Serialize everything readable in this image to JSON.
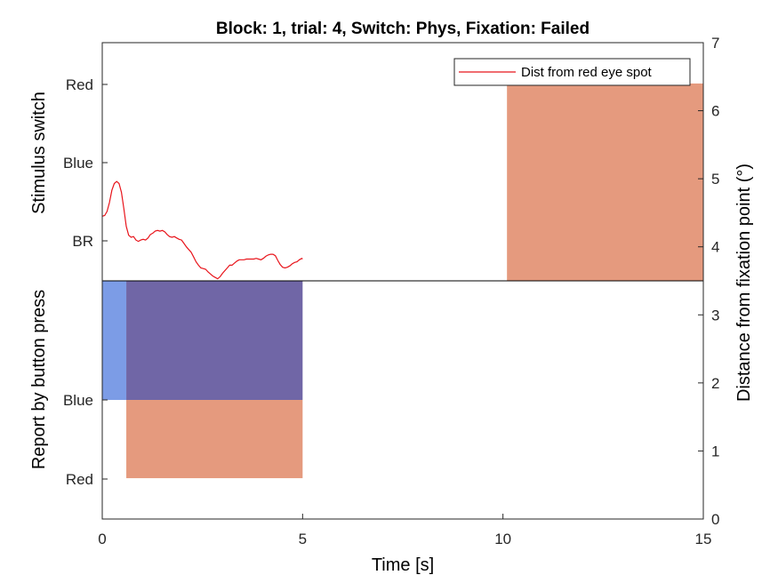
{
  "chart_data": {
    "type": "line",
    "title": "Block: 1, trial: 4, Switch: Phys, Fixation: Failed",
    "xlabel": "Time [s]",
    "xlim": [
      0,
      15
    ],
    "x_ticks": [
      "0",
      "5",
      "10",
      "15"
    ],
    "left_upper_label": "Stimulus switch",
    "left_upper_ticks": [
      "Red",
      "Blue",
      "BR"
    ],
    "left_lower_label": "Report by button press",
    "left_lower_ticks": [
      "Blue",
      "Red"
    ],
    "ylabel_right": "Distance from fixation point (°)",
    "ylim_right": [
      0,
      7
    ],
    "y_ticks_right": [
      "0",
      "1",
      "2",
      "3",
      "4",
      "5",
      "6",
      "7"
    ],
    "legend": {
      "label": "Dist from red eye spot",
      "position": "top-right",
      "color": "#e8141b"
    },
    "colors": {
      "red_patch": "#e59a7e",
      "blue_patch": "#7c9ce6",
      "overlap_patch": "#7066a6",
      "line": "#e8141b",
      "divider": "#000000"
    },
    "patches": [
      {
        "name": "stimulus-red-patch",
        "color": "#e59a7e",
        "x": [
          10.1,
          15
        ],
        "y": [
          3.5,
          6.4
        ]
      },
      {
        "name": "report-blue-patch",
        "color": "#7c9ce6",
        "x": [
          0,
          0.6
        ],
        "y": [
          1.75,
          3.5
        ]
      },
      {
        "name": "report-overlap-patch",
        "color": "#7066a6",
        "x": [
          0.6,
          5
        ],
        "y": [
          1.75,
          3.5
        ]
      },
      {
        "name": "report-red-patch",
        "color": "#e59a7e",
        "x": [
          0.6,
          5
        ],
        "y": [
          0.6,
          1.75
        ]
      }
    ],
    "divider_y": 3.5,
    "series": [
      {
        "name": "Dist from red eye spot",
        "x": [
          0,
          0.06,
          0.12,
          0.18,
          0.24,
          0.3,
          0.36,
          0.42,
          0.48,
          0.54,
          0.6,
          0.66,
          0.72,
          0.78,
          0.84,
          0.9,
          0.96,
          1.02,
          1.08,
          1.14,
          1.2,
          1.26,
          1.32,
          1.38,
          1.44,
          1.5,
          1.56,
          1.62,
          1.68,
          1.74,
          1.8,
          1.86,
          1.92,
          1.98,
          2.04,
          2.1,
          2.16,
          2.22,
          2.28,
          2.34,
          2.4,
          2.46,
          2.52,
          2.58,
          2.64,
          2.7,
          2.76,
          2.82,
          2.88,
          2.94,
          3.0,
          3.06,
          3.12,
          3.18,
          3.24,
          3.3,
          3.36,
          3.42,
          3.48,
          3.54,
          3.6,
          3.66,
          3.72,
          3.78,
          3.84,
          3.9,
          3.96,
          4.02,
          4.08,
          4.14,
          4.2,
          4.26,
          4.32,
          4.38,
          4.44,
          4.5,
          4.56,
          4.62,
          4.68,
          4.74,
          4.8,
          4.86,
          4.92,
          4.98,
          5.0
        ],
        "y": [
          4.45,
          4.46,
          4.52,
          4.65,
          4.83,
          4.93,
          4.96,
          4.93,
          4.8,
          4.56,
          4.3,
          4.17,
          4.14,
          4.15,
          4.1,
          4.08,
          4.1,
          4.11,
          4.1,
          4.13,
          4.18,
          4.2,
          4.23,
          4.24,
          4.23,
          4.24,
          4.22,
          4.18,
          4.15,
          4.14,
          4.15,
          4.13,
          4.11,
          4.1,
          4.05,
          4.0,
          3.96,
          3.92,
          3.85,
          3.78,
          3.73,
          3.69,
          3.68,
          3.67,
          3.63,
          3.6,
          3.57,
          3.55,
          3.53,
          3.56,
          3.61,
          3.65,
          3.69,
          3.73,
          3.73,
          3.76,
          3.79,
          3.81,
          3.81,
          3.81,
          3.82,
          3.82,
          3.82,
          3.82,
          3.83,
          3.82,
          3.81,
          3.83,
          3.86,
          3.88,
          3.89,
          3.89,
          3.87,
          3.8,
          3.74,
          3.7,
          3.69,
          3.7,
          3.72,
          3.75,
          3.77,
          3.78,
          3.81,
          3.83,
          3.82
        ]
      }
    ]
  }
}
